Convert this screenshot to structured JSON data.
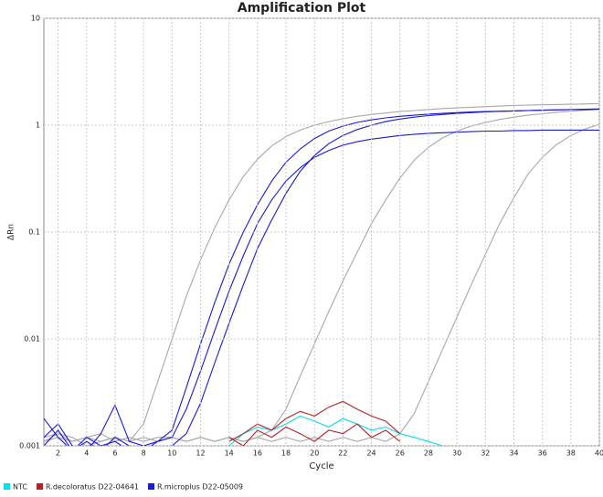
{
  "chart_data": {
    "type": "line",
    "title": "Amplification Plot",
    "xlabel": "Cycle",
    "ylabel": "ΔRn",
    "log_y": true,
    "grid": true,
    "xlim": [
      1,
      40
    ],
    "xticks": [
      2,
      4,
      6,
      8,
      10,
      12,
      14,
      16,
      18,
      20,
      22,
      24,
      26,
      28,
      30,
      32,
      34,
      36,
      38,
      40
    ],
    "ylim": [
      0.001,
      10
    ],
    "yticks": [
      0.001,
      0.01,
      0.1,
      1,
      10
    ],
    "x": [
      1,
      2,
      3,
      4,
      5,
      6,
      7,
      8,
      9,
      10,
      11,
      12,
      13,
      14,
      15,
      16,
      17,
      18,
      19,
      20,
      21,
      22,
      23,
      24,
      25,
      26,
      27,
      28,
      29,
      30,
      31,
      32,
      33,
      34,
      35,
      36,
      37,
      38,
      39,
      40
    ],
    "series": [
      {
        "color": "#a8a8a8",
        "values": [
          0.0011,
          0.0013,
          0.0012,
          0.001,
          0.0011,
          0.0012,
          0.0011,
          0.0016,
          0.004,
          0.01,
          0.025,
          0.055,
          0.11,
          0.2,
          0.33,
          0.48,
          0.64,
          0.78,
          0.9,
          1.0,
          1.08,
          1.15,
          1.21,
          1.26,
          1.3,
          1.34,
          1.37,
          1.4,
          1.43,
          1.45,
          1.47,
          1.49,
          1.51,
          1.53,
          1.54,
          1.55,
          1.56,
          1.57,
          1.58,
          1.59
        ]
      },
      {
        "color": "#a8a8a8",
        "values": [
          0.0012,
          0.0013,
          0.0011,
          0.0012,
          0.0013,
          0.0011,
          0.0012,
          0.0011,
          0.0012,
          0.0012,
          0.0011,
          0.0012,
          0.0011,
          0.0012,
          0.0011,
          0.0012,
          0.0014,
          0.0022,
          0.0045,
          0.009,
          0.018,
          0.035,
          0.065,
          0.12,
          0.2,
          0.32,
          0.47,
          0.62,
          0.76,
          0.88,
          0.98,
          1.06,
          1.13,
          1.19,
          1.24,
          1.28,
          1.32,
          1.35,
          1.38,
          1.4
        ]
      },
      {
        "color": "#a8a8a8",
        "values": [
          0.0011,
          0.0012,
          0.0011,
          0.0012,
          0.0011,
          0.0012,
          0.0011,
          0.0012,
          0.0011,
          0.0012,
          0.0011,
          0.0012,
          0.0011,
          0.0012,
          0.0011,
          0.0012,
          0.0011,
          0.0012,
          0.0011,
          0.0012,
          0.0011,
          0.0012,
          0.0011,
          0.0012,
          0.0011,
          0.0013,
          0.002,
          0.004,
          0.008,
          0.016,
          0.032,
          0.062,
          0.12,
          0.21,
          0.35,
          0.5,
          0.66,
          0.8,
          0.92,
          1.02
        ]
      },
      {
        "name": "NTC",
        "color": "#00e0e8",
        "values": [
          null,
          null,
          null,
          null,
          null,
          null,
          null,
          null,
          null,
          null,
          null,
          null,
          null,
          0.001,
          0.0013,
          0.0015,
          0.0014,
          0.0016,
          0.0019,
          0.0017,
          0.0015,
          0.0018,
          0.0016,
          0.0014,
          0.0015,
          0.0013,
          0.0012,
          0.0011,
          0.001,
          null,
          null,
          null,
          null,
          null,
          null,
          null,
          null,
          null,
          null,
          null
        ]
      },
      {
        "name": "R.decoloratus D22-04641",
        "color": "#b22222",
        "values": [
          null,
          null,
          null,
          null,
          null,
          null,
          null,
          null,
          null,
          null,
          null,
          null,
          null,
          0.0011,
          0.0013,
          0.0016,
          0.0014,
          0.0018,
          0.0021,
          0.0019,
          0.0023,
          0.0026,
          0.0022,
          0.0019,
          0.0017,
          0.0013,
          null,
          null,
          null,
          null,
          null,
          null,
          null,
          null,
          null,
          null,
          null,
          null,
          null,
          null
        ]
      },
      {
        "name": "R.microplus D22-05009",
        "color": "#1a1ad0",
        "values": [
          0.0018,
          0.0012,
          0.0009,
          0.0011,
          0.0009,
          0.0012,
          0.001,
          0.0009,
          0.0011,
          0.0014,
          0.0035,
          0.009,
          0.022,
          0.05,
          0.1,
          0.18,
          0.3,
          0.45,
          0.6,
          0.75,
          0.88,
          0.98,
          1.06,
          1.12,
          1.17,
          1.21,
          1.24,
          1.27,
          1.29,
          1.31,
          1.33,
          1.34,
          1.35,
          1.36,
          1.37,
          1.38,
          1.39,
          1.4,
          1.4,
          1.41
        ]
      },
      {
        "color": "#1a1ad0",
        "values": [
          0.0012,
          0.0016,
          0.001,
          0.0009,
          0.0013,
          0.0024,
          0.0011,
          0.001,
          0.0009,
          0.001,
          0.0013,
          0.0025,
          0.006,
          0.014,
          0.032,
          0.07,
          0.13,
          0.23,
          0.37,
          0.52,
          0.67,
          0.8,
          0.91,
          1.0,
          1.08,
          1.14,
          1.19,
          1.23,
          1.26,
          1.29,
          1.31,
          1.33,
          1.35,
          1.36,
          1.37,
          1.38,
          1.39,
          1.4,
          1.41,
          1.42
        ]
      },
      {
        "color": "#1a1ad0",
        "values": [
          0.001,
          0.0014,
          0.0009,
          0.0012,
          0.001,
          0.0011,
          0.0009,
          0.001,
          0.0011,
          0.0012,
          0.0022,
          0.005,
          0.012,
          0.028,
          0.06,
          0.12,
          0.2,
          0.3,
          0.4,
          0.5,
          0.58,
          0.65,
          0.7,
          0.74,
          0.77,
          0.8,
          0.82,
          0.84,
          0.85,
          0.86,
          0.87,
          0.88,
          0.88,
          0.89,
          0.89,
          0.9,
          0.9,
          0.9,
          0.9,
          0.9
        ]
      },
      {
        "color": "#b22222",
        "values": [
          null,
          null,
          null,
          null,
          null,
          null,
          null,
          null,
          null,
          null,
          null,
          null,
          null,
          0.0012,
          0.001,
          0.0014,
          0.0012,
          0.0015,
          0.0013,
          0.0011,
          0.0014,
          0.0013,
          0.0016,
          0.0012,
          0.0014,
          0.0011,
          null,
          null,
          null,
          null,
          null,
          null,
          null,
          null,
          null,
          null,
          null,
          null,
          null,
          null
        ]
      }
    ]
  }
}
